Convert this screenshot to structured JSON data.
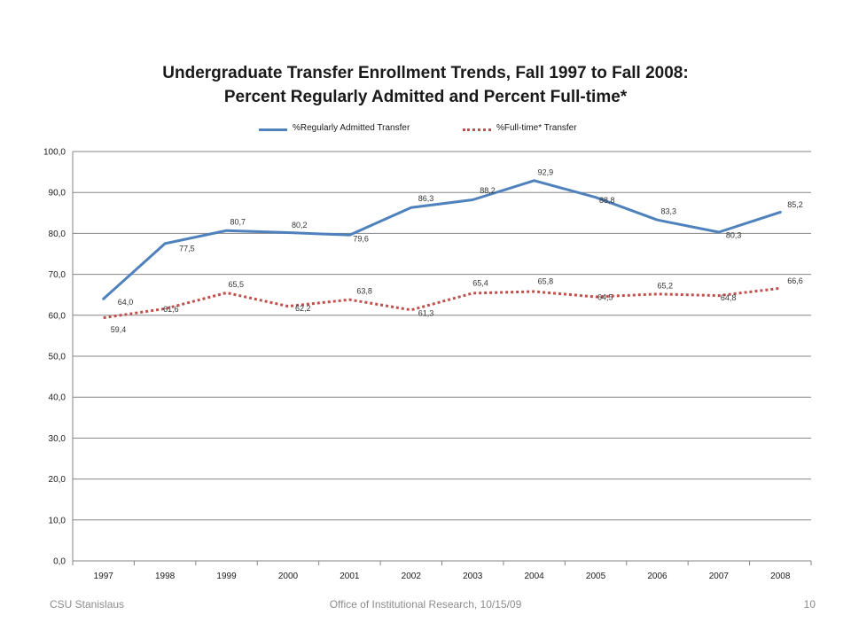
{
  "slide": {
    "footer_left": "CSU Stanislaus",
    "footer_center": "Office of Institutional Research, 10/15/09",
    "footer_right": "10"
  },
  "chart_data": {
    "type": "line",
    "title": "Undergraduate Transfer Enrollment Trends, Fall 1997 to Fall 2008:",
    "subtitle": "Percent Regularly Admitted and Percent Full-time*",
    "xlabel": "",
    "ylabel": "",
    "categories": [
      "1997",
      "1998",
      "1999",
      "2000",
      "2001",
      "2002",
      "2003",
      "2004",
      "2005",
      "2006",
      "2007",
      "2008"
    ],
    "ylim": [
      0,
      100
    ],
    "yticks": [
      "0,0",
      "10,0",
      "20,0",
      "30,0",
      "40,0",
      "50,0",
      "60,0",
      "70,0",
      "80,0",
      "90,0",
      "100,0"
    ],
    "grid": true,
    "legend_position": "top",
    "series": [
      {
        "name": "%Regularly Admitted Transfer",
        "values": [
          64.0,
          77.5,
          80.7,
          80.2,
          79.6,
          86.3,
          88.2,
          92.9,
          88.8,
          83.3,
          80.3,
          85.2
        ],
        "labels": [
          "64,0",
          "77,5",
          "80,7",
          "80,2",
          "79,6",
          "86,3",
          "88,2",
          "92,9",
          "88,8",
          "83,3",
          "80,3",
          "85,2"
        ],
        "color": "#4F81BD",
        "style": "solid"
      },
      {
        "name": "%Full-time* Transfer",
        "values": [
          59.4,
          61.6,
          65.5,
          62.2,
          63.8,
          61.3,
          65.4,
          65.8,
          64.5,
          65.2,
          64.8,
          66.6
        ],
        "labels": [
          "59,4",
          "61,6",
          "65,5",
          "62,2",
          "63,8",
          "61,3",
          "65,4",
          "65,8",
          "64,5",
          "65,2",
          "64,8",
          "66,6"
        ],
        "color": "#C0504D",
        "style": "dotted"
      }
    ]
  }
}
